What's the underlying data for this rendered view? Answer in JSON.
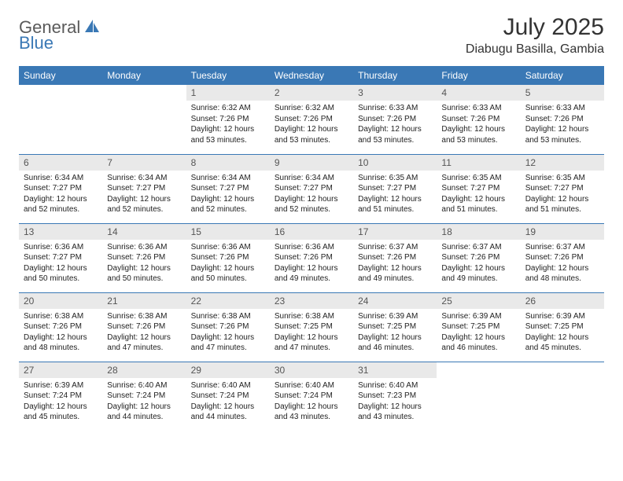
{
  "brand": {
    "part1": "General",
    "part2": "Blue"
  },
  "title": "July 2025",
  "location": "Diabugu Basilla, Gambia",
  "colors": {
    "header_bg": "#3a78b5",
    "header_text": "#ffffff",
    "daynum_bg": "#e9e9e9",
    "row_divider": "#3a78b5",
    "logo_gray": "#5a5a5a",
    "logo_blue": "#3a78b5"
  },
  "day_names": [
    "Sunday",
    "Monday",
    "Tuesday",
    "Wednesday",
    "Thursday",
    "Friday",
    "Saturday"
  ],
  "weeks": [
    [
      {
        "n": "",
        "sunrise": "",
        "sunset": "",
        "daylight": ""
      },
      {
        "n": "",
        "sunrise": "",
        "sunset": "",
        "daylight": ""
      },
      {
        "n": "1",
        "sunrise": "6:32 AM",
        "sunset": "7:26 PM",
        "daylight": "12 hours and 53 minutes."
      },
      {
        "n": "2",
        "sunrise": "6:32 AM",
        "sunset": "7:26 PM",
        "daylight": "12 hours and 53 minutes."
      },
      {
        "n": "3",
        "sunrise": "6:33 AM",
        "sunset": "7:26 PM",
        "daylight": "12 hours and 53 minutes."
      },
      {
        "n": "4",
        "sunrise": "6:33 AM",
        "sunset": "7:26 PM",
        "daylight": "12 hours and 53 minutes."
      },
      {
        "n": "5",
        "sunrise": "6:33 AM",
        "sunset": "7:26 PM",
        "daylight": "12 hours and 53 minutes."
      }
    ],
    [
      {
        "n": "6",
        "sunrise": "6:34 AM",
        "sunset": "7:27 PM",
        "daylight": "12 hours and 52 minutes."
      },
      {
        "n": "7",
        "sunrise": "6:34 AM",
        "sunset": "7:27 PM",
        "daylight": "12 hours and 52 minutes."
      },
      {
        "n": "8",
        "sunrise": "6:34 AM",
        "sunset": "7:27 PM",
        "daylight": "12 hours and 52 minutes."
      },
      {
        "n": "9",
        "sunrise": "6:34 AM",
        "sunset": "7:27 PM",
        "daylight": "12 hours and 52 minutes."
      },
      {
        "n": "10",
        "sunrise": "6:35 AM",
        "sunset": "7:27 PM",
        "daylight": "12 hours and 51 minutes."
      },
      {
        "n": "11",
        "sunrise": "6:35 AM",
        "sunset": "7:27 PM",
        "daylight": "12 hours and 51 minutes."
      },
      {
        "n": "12",
        "sunrise": "6:35 AM",
        "sunset": "7:27 PM",
        "daylight": "12 hours and 51 minutes."
      }
    ],
    [
      {
        "n": "13",
        "sunrise": "6:36 AM",
        "sunset": "7:27 PM",
        "daylight": "12 hours and 50 minutes."
      },
      {
        "n": "14",
        "sunrise": "6:36 AM",
        "sunset": "7:26 PM",
        "daylight": "12 hours and 50 minutes."
      },
      {
        "n": "15",
        "sunrise": "6:36 AM",
        "sunset": "7:26 PM",
        "daylight": "12 hours and 50 minutes."
      },
      {
        "n": "16",
        "sunrise": "6:36 AM",
        "sunset": "7:26 PM",
        "daylight": "12 hours and 49 minutes."
      },
      {
        "n": "17",
        "sunrise": "6:37 AM",
        "sunset": "7:26 PM",
        "daylight": "12 hours and 49 minutes."
      },
      {
        "n": "18",
        "sunrise": "6:37 AM",
        "sunset": "7:26 PM",
        "daylight": "12 hours and 49 minutes."
      },
      {
        "n": "19",
        "sunrise": "6:37 AM",
        "sunset": "7:26 PM",
        "daylight": "12 hours and 48 minutes."
      }
    ],
    [
      {
        "n": "20",
        "sunrise": "6:38 AM",
        "sunset": "7:26 PM",
        "daylight": "12 hours and 48 minutes."
      },
      {
        "n": "21",
        "sunrise": "6:38 AM",
        "sunset": "7:26 PM",
        "daylight": "12 hours and 47 minutes."
      },
      {
        "n": "22",
        "sunrise": "6:38 AM",
        "sunset": "7:26 PM",
        "daylight": "12 hours and 47 minutes."
      },
      {
        "n": "23",
        "sunrise": "6:38 AM",
        "sunset": "7:25 PM",
        "daylight": "12 hours and 47 minutes."
      },
      {
        "n": "24",
        "sunrise": "6:39 AM",
        "sunset": "7:25 PM",
        "daylight": "12 hours and 46 minutes."
      },
      {
        "n": "25",
        "sunrise": "6:39 AM",
        "sunset": "7:25 PM",
        "daylight": "12 hours and 46 minutes."
      },
      {
        "n": "26",
        "sunrise": "6:39 AM",
        "sunset": "7:25 PM",
        "daylight": "12 hours and 45 minutes."
      }
    ],
    [
      {
        "n": "27",
        "sunrise": "6:39 AM",
        "sunset": "7:24 PM",
        "daylight": "12 hours and 45 minutes."
      },
      {
        "n": "28",
        "sunrise": "6:40 AM",
        "sunset": "7:24 PM",
        "daylight": "12 hours and 44 minutes."
      },
      {
        "n": "29",
        "sunrise": "6:40 AM",
        "sunset": "7:24 PM",
        "daylight": "12 hours and 44 minutes."
      },
      {
        "n": "30",
        "sunrise": "6:40 AM",
        "sunset": "7:24 PM",
        "daylight": "12 hours and 43 minutes."
      },
      {
        "n": "31",
        "sunrise": "6:40 AM",
        "sunset": "7:23 PM",
        "daylight": "12 hours and 43 minutes."
      },
      {
        "n": "",
        "sunrise": "",
        "sunset": "",
        "daylight": ""
      },
      {
        "n": "",
        "sunrise": "",
        "sunset": "",
        "daylight": ""
      }
    ]
  ],
  "labels": {
    "sunrise": "Sunrise:",
    "sunset": "Sunset:",
    "daylight": "Daylight:"
  }
}
